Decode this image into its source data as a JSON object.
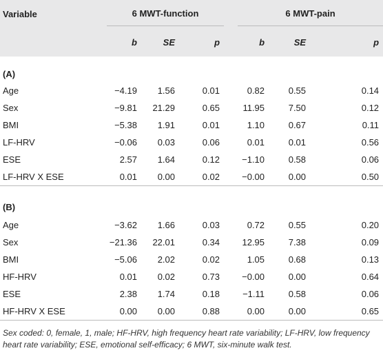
{
  "table": {
    "header": {
      "variable": "Variable",
      "groups": [
        "6 MWT-function",
        "6 MWT-pain"
      ],
      "subheaders": [
        "b",
        "SE",
        "p",
        "b",
        "SE",
        "p"
      ]
    },
    "sections": [
      {
        "label": "(A)",
        "rows": [
          [
            "Age",
            "−4.19",
            "1.56",
            "0.01",
            "0.82",
            "0.55",
            "0.14"
          ],
          [
            "Sex",
            "−9.81",
            "21.29",
            "0.65",
            "11.95",
            "7.50",
            "0.12"
          ],
          [
            "BMI",
            "−5.38",
            "1.91",
            "0.01",
            "1.10",
            "0.67",
            "0.11"
          ],
          [
            "LF-HRV",
            "−0.06",
            "0.03",
            "0.06",
            "0.01",
            "0.01",
            "0.56"
          ],
          [
            "ESE",
            "2.57",
            "1.64",
            "0.12",
            "−1.10",
            "0.58",
            "0.06"
          ],
          [
            "LF-HRV X ESE",
            "0.01",
            "0.00",
            "0.02",
            "−0.00",
            "0.00",
            "0.50"
          ]
        ]
      },
      {
        "label": "(B)",
        "rows": [
          [
            "Age",
            "−3.62",
            "1.66",
            "0.03",
            "0.72",
            "0.55",
            "0.20"
          ],
          [
            "Sex",
            "−21.36",
            "22.01",
            "0.34",
            "12.95",
            "7.38",
            "0.09"
          ],
          [
            "BMI",
            "−5.06",
            "2.02",
            "0.02",
            "1.05",
            "0.68",
            "0.13"
          ],
          [
            "HF-HRV",
            "0.01",
            "0.02",
            "0.73",
            "−0.00",
            "0.00",
            "0.64"
          ],
          [
            "ESE",
            "2.38",
            "1.74",
            "0.18",
            "−1.11",
            "0.58",
            "0.06"
          ],
          [
            "HF-HRV X ESE",
            "0.00",
            "0.00",
            "0.88",
            "0.00",
            "0.00",
            "0.65"
          ]
        ]
      }
    ]
  },
  "footnote": "Sex coded: 0, female, 1, male; HF-HRV, high frequency heart rate variability; LF-HRV, low frequency heart rate variability; ESE, emotional self-efficacy; 6 MWT, six-minute walk test."
}
